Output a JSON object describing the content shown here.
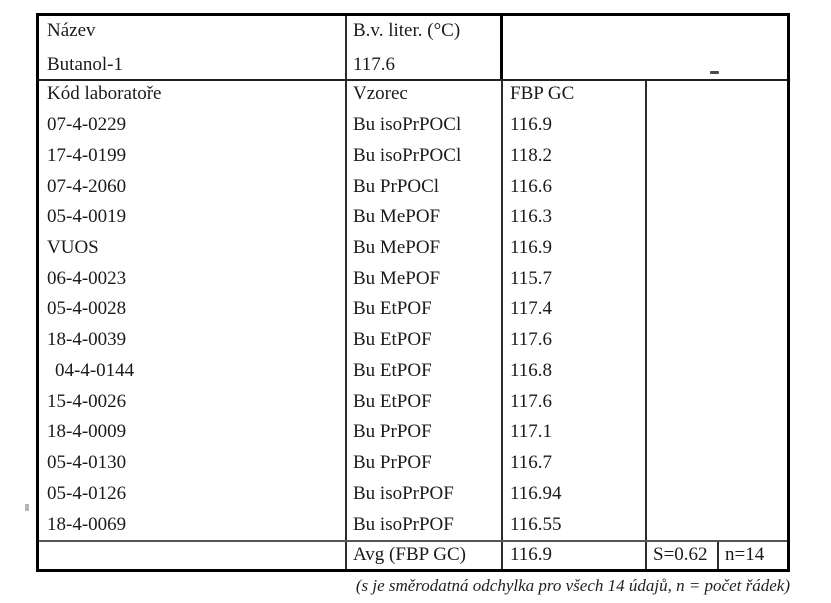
{
  "table": {
    "header": {
      "name_label": "Název",
      "name_value": "Butanol-1",
      "bv_label": "B.v. liter. (°C)",
      "bv_value": "117.6"
    },
    "columns": {
      "lab_code": "Kód laboratoře",
      "formula": "Vzorec",
      "fbp_gc": "FBP GC"
    },
    "rows": [
      {
        "code": "07-4-0229",
        "formula": "Bu isoPrPOCl",
        "fbp": "116.9"
      },
      {
        "code": "17-4-0199",
        "formula": "Bu isoPrPOCl",
        "fbp": "118.2"
      },
      {
        "code": "07-4-2060",
        "formula": "Bu PrPOCl",
        "fbp": "116.6"
      },
      {
        "code": "05-4-0019",
        "formula": "Bu MePOF",
        "fbp": "116.3"
      },
      {
        "code": "VUOS",
        "formula": "Bu MePOF",
        "fbp": "116.9"
      },
      {
        "code": "06-4-0023",
        "formula": "Bu MePOF",
        "fbp": "115.7"
      },
      {
        "code": "05-4-0028",
        "formula": "Bu EtPOF",
        "fbp": "117.4"
      },
      {
        "code": "18-4-0039",
        "formula": "Bu EtPOF",
        "fbp": "117.6"
      },
      {
        "code": "04-4-0144",
        "formula": "Bu EtPOF",
        "fbp": "116.8"
      },
      {
        "code": "15-4-0026",
        "formula": "Bu EtPOF",
        "fbp": "117.6"
      },
      {
        "code": "18-4-0009",
        "formula": "Bu PrPOF",
        "fbp": "117.1"
      },
      {
        "code": "05-4-0130",
        "formula": "Bu PrPOF",
        "fbp": "116.7"
      },
      {
        "code": "05-4-0126",
        "formula": "Bu isoPrPOF",
        "fbp": "116.94"
      },
      {
        "code": "18-4-0069",
        "formula": "Bu isoPrPOF",
        "fbp": "116.55"
      }
    ],
    "summary": {
      "avg_label": "Avg (FBP GC)",
      "avg_value": "116.9",
      "s_value": "S=0.62",
      "n_value": "n=14"
    }
  },
  "footnote": "(s je směrodatná odchylka pro všech 14 údajů, n = počet řádek)"
}
